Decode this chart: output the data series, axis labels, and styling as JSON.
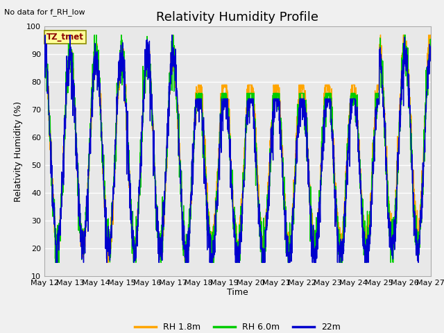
{
  "title": "Relativity Humidity Profile",
  "subtitle": "No data for f_RH_low",
  "ylabel": "Relativity Humidity (%)",
  "xlabel": "Time",
  "ylim": [
    10,
    100
  ],
  "yticks": [
    10,
    20,
    30,
    40,
    50,
    60,
    70,
    80,
    90,
    100
  ],
  "xtick_labels": [
    "May 12",
    "May 13",
    "May 14",
    "May 15",
    "May 16",
    "May 17",
    "May 18",
    "May 19",
    "May 20",
    "May 21",
    "May 22",
    "May 23",
    "May 24",
    "May 25",
    "May 26",
    "May 27"
  ],
  "legend_labels": [
    "RH 1.8m",
    "RH 6.0m",
    "22m"
  ],
  "colors": {
    "RH_1.8m": "#FFA500",
    "RH_6.0m": "#00CC00",
    "22m": "#0000CD"
  },
  "station_label": "TZ_tmet",
  "station_label_color": "#8B0000",
  "station_box_facecolor": "#FFFF99",
  "station_box_edgecolor": "#8B8B00",
  "fig_facecolor": "#F0F0F0",
  "plot_bg_color": "#E8E8E8",
  "grid_color": "#FFFFFF",
  "linewidth": 1.0,
  "title_fontsize": 13,
  "axis_fontsize": 9,
  "tick_fontsize": 8
}
